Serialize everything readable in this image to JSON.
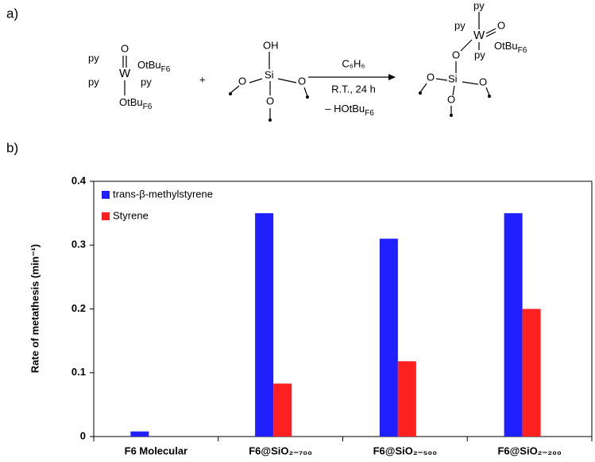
{
  "panel_labels": [
    "a)",
    "b)"
  ],
  "scheme": {
    "reactant_1": [
      "py",
      "O",
      "W",
      {
        "text": "OtBu",
        "sub": "F6"
      },
      "py",
      "py",
      {
        "text": "OtBu",
        "sub": "F6"
      }
    ],
    "plus": "+",
    "reactant_2": [
      "OH",
      "Si",
      "O",
      "O",
      "O"
    ],
    "conditions": [
      "C₆H₆",
      "R.T., 24 h",
      {
        "text": "– HOtBu",
        "sub": "F6"
      }
    ],
    "product": [
      "py",
      "py",
      "W",
      "O",
      {
        "text": "OtBu",
        "sub": "F6"
      },
      "py",
      "O",
      "Si",
      "O",
      "O",
      "O"
    ]
  },
  "chart_data": {
    "type": "bar",
    "y_label": "Rate of metathesis (min⁻¹)",
    "categories": [
      "F6 Molecular",
      "F6@SiO₂₋₇₀₀",
      "F6@SiO₂₋₅₀₀",
      "F6@SiO₂₋₂₀₀"
    ],
    "series": [
      {
        "name": "trans-β-methylstyrene",
        "color": "#1f1fff",
        "values": [
          0.008,
          0.35,
          0.31,
          0.35
        ]
      },
      {
        "name": "Styrene",
        "color": "#ff2020",
        "values": [
          null,
          0.083,
          0.118,
          0.2
        ]
      }
    ],
    "ylim": [
      0,
      0.4
    ],
    "yticks": [
      0,
      0.1,
      0.2,
      0.3,
      0.4
    ],
    "grid": false,
    "legend": "upper left"
  }
}
